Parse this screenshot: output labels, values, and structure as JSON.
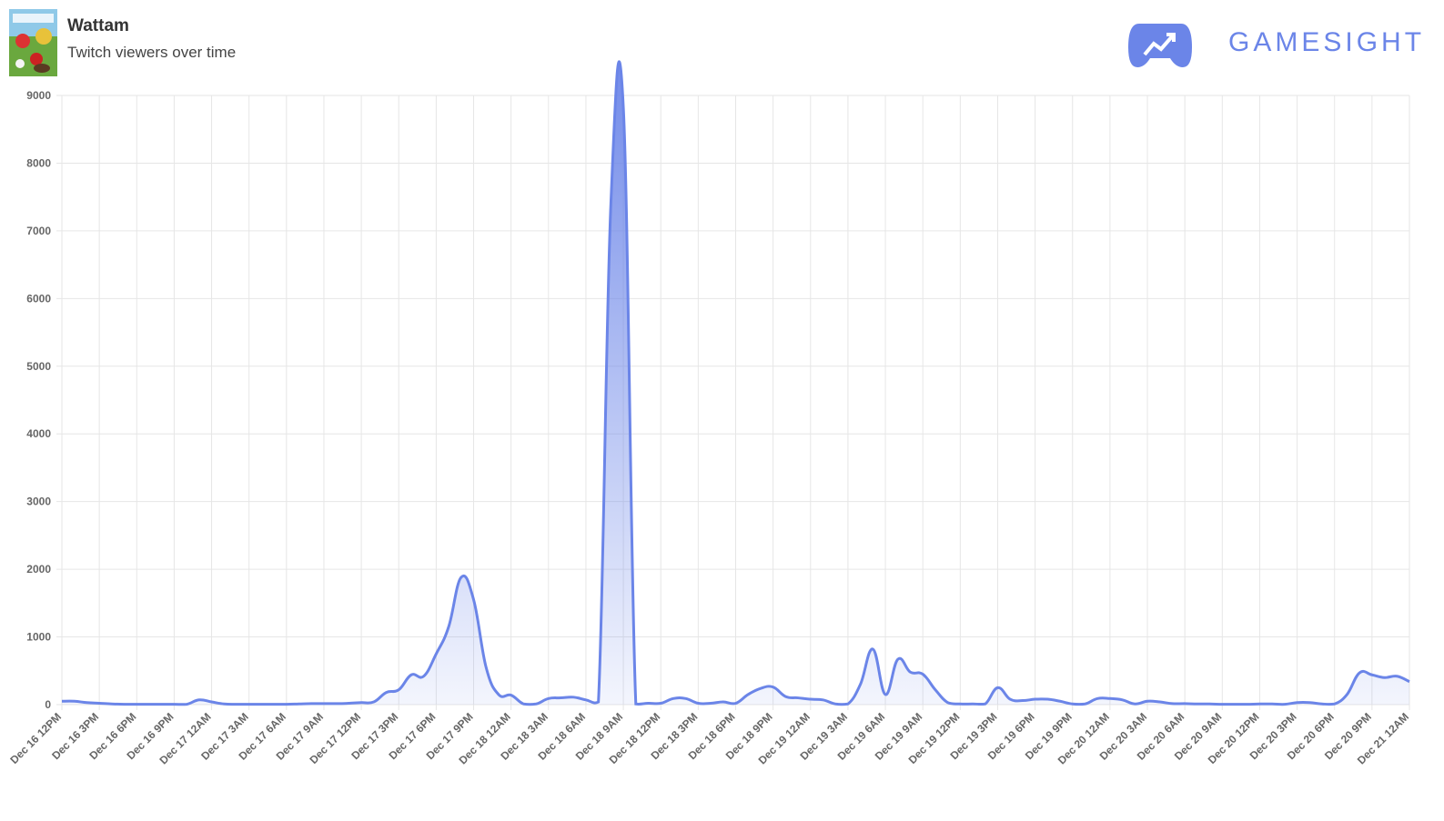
{
  "header": {
    "title": "Wattam",
    "subtitle": "Twitch viewers over time",
    "brand": "GAMESIGHT"
  },
  "chart_data": {
    "type": "line",
    "color": "#6b85e8",
    "grid": true,
    "ylim": [
      0,
      9000
    ],
    "yticks": [
      0,
      1000,
      2000,
      3000,
      4000,
      5000,
      6000,
      7000,
      8000,
      9000
    ],
    "categories": [
      "Dec 16 12PM",
      null,
      null,
      "Dec 16 3PM",
      null,
      null,
      "Dec 16 6PM",
      null,
      null,
      "Dec 16 9PM",
      null,
      null,
      "Dec 17 12AM",
      null,
      null,
      "Dec 17 3AM",
      null,
      null,
      "Dec 17 6AM",
      null,
      null,
      "Dec 17 9AM",
      null,
      null,
      "Dec 17 12PM",
      null,
      null,
      "Dec 17 3PM",
      null,
      null,
      "Dec 17 6PM",
      null,
      null,
      "Dec 17 9PM",
      null,
      null,
      "Dec 18 12AM",
      null,
      null,
      "Dec 18 3AM",
      null,
      null,
      "Dec 18 6AM",
      null,
      null,
      "Dec 18 9AM",
      null,
      null,
      "Dec 18 12PM",
      null,
      null,
      "Dec 18 3PM",
      null,
      null,
      "Dec 18 6PM",
      null,
      null,
      "Dec 18 9PM",
      null,
      null,
      "Dec 19 12AM",
      null,
      null,
      "Dec 19 3AM",
      null,
      null,
      "Dec 19 6AM",
      null,
      null,
      "Dec 19 9AM",
      null,
      null,
      "Dec 19 12PM",
      null,
      null,
      "Dec 19 3PM",
      null,
      null,
      "Dec 19 6PM",
      null,
      null,
      "Dec 19 9PM",
      null,
      null,
      "Dec 20 12AM",
      null,
      null,
      "Dec 20 3AM",
      null,
      null,
      "Dec 20 6AM",
      null,
      null,
      "Dec 20 9AM",
      null,
      null,
      "Dec 20 12PM",
      null,
      null,
      "Dec 20 3PM",
      null,
      null,
      "Dec 20 6PM",
      null,
      null,
      "Dec 20 9PM",
      null,
      null,
      "Dec 21 12AM"
    ],
    "values": [
      50,
      50,
      30,
      20,
      10,
      5,
      5,
      5,
      5,
      5,
      5,
      70,
      40,
      10,
      5,
      5,
      5,
      5,
      5,
      10,
      15,
      15,
      15,
      20,
      30,
      40,
      180,
      220,
      440,
      420,
      750,
      1150,
      1880,
      1550,
      550,
      150,
      140,
      10,
      10,
      90,
      100,
      110,
      70,
      40,
      7400,
      8820,
      10,
      20,
      20,
      90,
      90,
      20,
      20,
      40,
      20,
      150,
      240,
      260,
      120,
      100,
      80,
      70,
      10,
      10,
      300,
      820,
      150,
      670,
      480,
      450,
      220,
      30,
      10,
      10,
      10,
      250,
      80,
      60,
      80,
      80,
      50,
      10,
      10,
      90,
      90,
      70,
      10,
      50,
      40,
      15,
      15,
      10,
      10,
      5,
      5,
      5,
      10,
      10,
      5,
      30,
      30,
      10,
      10,
      150,
      470,
      440,
      400,
      420,
      340
    ]
  }
}
